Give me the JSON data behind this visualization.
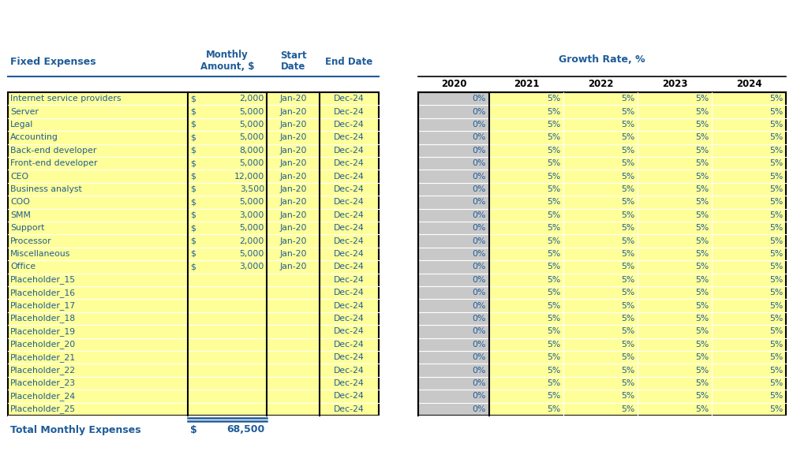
{
  "bg_color": "#ffffff",
  "blue": "#1F5C99",
  "yellow_bg": "#FFFF99",
  "gray_bg": "#C8C8C8",
  "black": "#000000",
  "white": "#ffffff",
  "rows": [
    [
      "Internet service providers",
      "$",
      "2,000",
      "Jan-20",
      "Dec-24"
    ],
    [
      "Server",
      "$",
      "5,000",
      "Jan-20",
      "Dec-24"
    ],
    [
      "Legal",
      "$",
      "5,000",
      "Jan-20",
      "Dec-24"
    ],
    [
      "Accounting",
      "$",
      "5,000",
      "Jan-20",
      "Dec-24"
    ],
    [
      "Back-end developer",
      "$",
      "8,000",
      "Jan-20",
      "Dec-24"
    ],
    [
      "Front-end developer",
      "$",
      "5,000",
      "Jan-20",
      "Dec-24"
    ],
    [
      "CEO",
      "$",
      "12,000",
      "Jan-20",
      "Dec-24"
    ],
    [
      "Business analyst",
      "$",
      "3,500",
      "Jan-20",
      "Dec-24"
    ],
    [
      "COO",
      "$",
      "5,000",
      "Jan-20",
      "Dec-24"
    ],
    [
      "SMM",
      "$",
      "3,000",
      "Jan-20",
      "Dec-24"
    ],
    [
      "Support",
      "$",
      "5,000",
      "Jan-20",
      "Dec-24"
    ],
    [
      "Processor",
      "$",
      "2,000",
      "Jan-20",
      "Dec-24"
    ],
    [
      "Miscellaneous",
      "$",
      "5,000",
      "Jan-20",
      "Dec-24"
    ],
    [
      "Office",
      "$",
      "3,000",
      "Jan-20",
      "Dec-24"
    ],
    [
      "Placeholder_15",
      "",
      "",
      "",
      "Dec-24"
    ],
    [
      "Placeholder_16",
      "",
      "",
      "",
      "Dec-24"
    ],
    [
      "Placeholder_17",
      "",
      "",
      "",
      "Dec-24"
    ],
    [
      "Placeholder_18",
      "",
      "",
      "",
      "Dec-24"
    ],
    [
      "Placeholder_19",
      "",
      "",
      "",
      "Dec-24"
    ],
    [
      "Placeholder_20",
      "",
      "",
      "",
      "Dec-24"
    ],
    [
      "Placeholder_21",
      "",
      "",
      "",
      "Dec-24"
    ],
    [
      "Placeholder_22",
      "",
      "",
      "",
      "Dec-24"
    ],
    [
      "Placeholder_23",
      "",
      "",
      "",
      "Dec-24"
    ],
    [
      "Placeholder_24",
      "",
      "",
      "",
      "Dec-24"
    ],
    [
      "Placeholder_25",
      "",
      "",
      "",
      "Dec-24"
    ]
  ],
  "total_label": "Total Monthly Expenses",
  "total_dollar": "$",
  "total_value": "68,500",
  "right_title": "Growth Rate, %",
  "right_year_headers": [
    "2020",
    "2021",
    "2022",
    "2023",
    "2024"
  ],
  "right_values_2020": "0%",
  "right_values_other": "5%",
  "left_header_fixed_expenses": "Fixed Expenses",
  "left_header_monthly": "Monthly\nAmount, $",
  "left_header_start": "Start\nDate",
  "left_header_end": "End Date"
}
